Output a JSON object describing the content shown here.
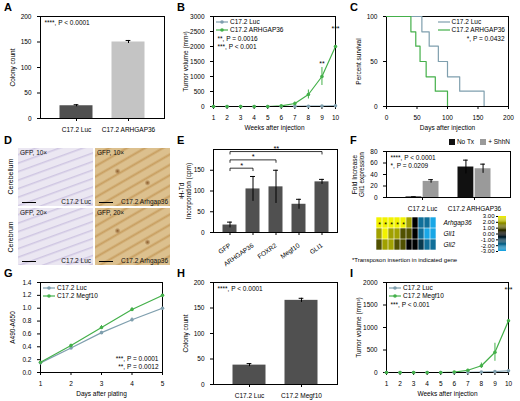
{
  "chart_data": [
    {
      "panel": "A",
      "type": "bar",
      "categories": [
        "C17.2 Luc",
        "C17.2 ARHGAP36"
      ],
      "values": [
        25,
        150
      ],
      "errors": [
        2,
        3
      ],
      "colors": [
        "#505050",
        "#c4c4c4"
      ],
      "y_label": "Colony count",
      "ylim": [
        0,
        200
      ],
      "yticks": [
        0,
        50,
        100,
        150,
        200
      ],
      "annotations": [
        "****, P < 0.0001"
      ]
    },
    {
      "panel": "B",
      "type": "line",
      "x": [
        1,
        2,
        3,
        4,
        5,
        6,
        7,
        8,
        9,
        10
      ],
      "xlim": [
        1,
        10
      ],
      "xticks": [
        1,
        2,
        3,
        4,
        5,
        6,
        7,
        8,
        9,
        10
      ],
      "x_label": "Weeks after injection",
      "y_label": "Tumor volume (mm³)",
      "ylim": [
        0,
        3000
      ],
      "yticks": [
        0,
        500,
        1000,
        1500,
        2000,
        2500,
        3000
      ],
      "marker": "circle",
      "legend": "top-left",
      "series": [
        {
          "name": "C17.2 Luc",
          "color": "#7f9fae",
          "values": [
            0,
            0,
            0,
            0,
            0,
            0,
            5,
            10,
            15,
            25
          ],
          "errors": [
            0,
            0,
            0,
            0,
            0,
            0,
            3,
            5,
            8,
            10
          ]
        },
        {
          "name": "C17.2 ARHGAP36",
          "color": "#44b04a",
          "values": [
            0,
            0,
            0,
            0,
            0,
            20,
            100,
            400,
            1000,
            2000
          ],
          "errors": [
            0,
            0,
            0,
            0,
            0,
            10,
            50,
            150,
            300,
            450
          ]
        }
      ],
      "annotations": [
        "**, P = 0.0016",
        "***, P < 0.001"
      ],
      "significance": [
        {
          "x": 9,
          "label": "**"
        },
        {
          "x": 10,
          "label": "***"
        }
      ]
    },
    {
      "panel": "C",
      "type": "line",
      "line_style": "step",
      "x_label": "Days after injection",
      "y_label": "Percent survival",
      "xlim": [
        0,
        200
      ],
      "xticks": [
        0,
        50,
        100,
        150,
        200
      ],
      "ylim": [
        0,
        100
      ],
      "yticks": [
        0,
        50,
        100
      ],
      "legend": "top-right",
      "series": [
        {
          "name": "C17.2 Luc",
          "color": "#7f9fae",
          "x": [
            0,
            58,
            70,
            85,
            100,
            120,
            160
          ],
          "values": [
            100,
            83,
            67,
            50,
            33,
            17,
            0
          ]
        },
        {
          "name": "C17.2 ARHGAP36",
          "color": "#44b04a",
          "x": [
            0,
            40,
            48,
            55,
            65,
            80,
            100
          ],
          "values": [
            100,
            83,
            67,
            50,
            33,
            17,
            0
          ]
        }
      ],
      "annotations": [
        "*, P = 0.0432"
      ]
    },
    {
      "panel": "D",
      "type": "images",
      "rows": [
        "Cerebellum",
        "Cerebrum"
      ],
      "images": [
        [
          {
            "label": "GFP, 10×",
            "caption": "C17.2 Luc"
          },
          {
            "label": "GFP, 10×",
            "caption": "C17.2 Arhgap36"
          }
        ],
        [
          {
            "label": "GFP, 20×",
            "caption": "C17.2 Luc"
          },
          {
            "label": "GFP, 20×",
            "caption": "C17.2 Arhgap36"
          }
        ]
      ]
    },
    {
      "panel": "E",
      "type": "bar",
      "categories": [
        "GFP",
        "ARHGAP36",
        "FOXR2",
        "Megf10",
        "GLI1"
      ],
      "values": [
        18,
        105,
        110,
        68,
        122
      ],
      "errors": [
        7,
        30,
        40,
        12,
        6
      ],
      "color": "#505050",
      "y_label": "³H-Td Incorporation (cpm)",
      "ylim": [
        0,
        200
      ],
      "yticks": [
        0,
        50,
        100,
        150
      ],
      "comparisons": [
        {
          "from": "GFP",
          "to": "ARHGAP36",
          "label": "*"
        },
        {
          "from": "GFP",
          "to": "FOXR2",
          "label": "*"
        },
        {
          "from": "GFP",
          "to": "GLI1",
          "label": "**"
        }
      ]
    },
    {
      "panel": "F",
      "type": "bar",
      "categories": [
        "C17.2 Luc",
        "C17.2 ARHGAP36"
      ],
      "y_label": "Fold Increase Gli1 expression",
      "ylim": [
        0,
        80
      ],
      "yticks": [
        0,
        20,
        40,
        60,
        80
      ],
      "legend": "top-right",
      "series": [
        {
          "name": "No Tx",
          "color": "#111111",
          "values": [
            1,
            53
          ],
          "errors": [
            0.3,
            12
          ]
        },
        {
          "name": "+ ShhN",
          "color": "#9a9a9a",
          "values": [
            28,
            50
          ],
          "errors": [
            3,
            8
          ]
        }
      ],
      "annotations": [
        "****, P < 0.0001",
        "*, P = 0.0209"
      ],
      "heatmap": {
        "rows": [
          "Arhgap36",
          "Gli1",
          "Gli2"
        ],
        "values": [
          [
            3,
            3,
            3,
            3,
            3,
            2,
            0,
            -2,
            -2,
            -3
          ],
          [
            2,
            3,
            2,
            2,
            1,
            1,
            0,
            -2,
            -3,
            -3
          ],
          [
            1,
            2,
            2,
            1,
            1,
            0,
            0,
            -1,
            -2,
            -2
          ]
        ],
        "range": [
          -3,
          3
        ],
        "ticks": [
          {
            "value": 3,
            "label": "3.00"
          },
          {
            "value": 2,
            "label": "2.00"
          },
          {
            "value": 1,
            "label": "1.00"
          },
          {
            "value": 0,
            "label": "0.00"
          },
          {
            "value": -1,
            "label": "-1.00"
          },
          {
            "value": -2,
            "label": "-2.00"
          },
          {
            "value": -3,
            "label": "-3.00"
          }
        ],
        "colors": [
          "#19a7e6",
          "#000000",
          "#f2f200"
        ],
        "insertions": [
          [
            0,
            0
          ],
          [
            0,
            1
          ],
          [
            0,
            2
          ],
          [
            0,
            3
          ],
          [
            0,
            4
          ]
        ],
        "insertion_label": "*",
        "caption": "*Transposon insertion in indicated gene"
      }
    },
    {
      "panel": "G",
      "type": "line",
      "x": [
        1,
        2,
        3,
        4,
        5
      ],
      "xlim": [
        1,
        5
      ],
      "xticks": [
        1,
        2,
        3,
        4,
        5
      ],
      "x_label": "Days after plating",
      "y_label": "A490-A650",
      "ylim": [
        0,
        1.4
      ],
      "yticks": [
        {
          "value": 0,
          "label": "0.0"
        },
        0.2,
        0.4,
        0.6,
        0.8,
        {
          "value": 1,
          "label": "1.0"
        },
        1.2,
        1.4
      ],
      "marker": "circle",
      "legend": "top-left",
      "series": [
        {
          "name": "C17.2 Luc",
          "color": "#7f9fae",
          "values": [
            0.15,
            0.38,
            0.62,
            0.82,
            1.0
          ],
          "errors": [
            0.01,
            0.02,
            0.02,
            0.03,
            0.03
          ]
        },
        {
          "name": "C17.2 Megf10",
          "color": "#44b04a",
          "values": [
            0.16,
            0.42,
            0.7,
            0.98,
            1.2
          ],
          "errors": [
            0.01,
            0.02,
            0.03,
            0.03,
            0.04
          ]
        }
      ],
      "annotations": [
        "***, P = 0.0001",
        "**, P = 0.0012"
      ]
    },
    {
      "panel": "H",
      "type": "bar",
      "categories": [
        "C17.2 Luc",
        "C17.2 Megf10"
      ],
      "values": [
        38,
        165
      ],
      "errors": [
        3,
        4
      ],
      "color": "#505050",
      "y_label": "Colony count",
      "ylim": [
        0,
        200
      ],
      "yticks": [
        0,
        50,
        100,
        150,
        200
      ],
      "annotations": [
        "****, P < 0.0001"
      ]
    },
    {
      "panel": "I",
      "type": "line",
      "x": [
        1,
        2,
        3,
        4,
        5,
        6,
        7,
        8,
        9,
        10
      ],
      "xlim": [
        1,
        10
      ],
      "xticks": [
        1,
        2,
        3,
        4,
        5,
        6,
        7,
        8,
        9,
        10
      ],
      "x_label": "Weeks after injection",
      "y_label": "Tumor volume (mm³)",
      "ylim": [
        0,
        2000
      ],
      "yticks": [
        0,
        500,
        1000,
        1500,
        2000
      ],
      "marker": "circle",
      "legend": "top-left",
      "series": [
        {
          "name": "C17.2 Luc",
          "color": "#7f9fae",
          "values": [
            0,
            0,
            0,
            0,
            0,
            0,
            5,
            10,
            20,
            40
          ],
          "errors": [
            0,
            0,
            0,
            0,
            0,
            0,
            3,
            5,
            8,
            12
          ]
        },
        {
          "name": "C17.2 Megf10",
          "color": "#44b04a",
          "values": [
            0,
            0,
            0,
            0,
            0,
            10,
            50,
            150,
            450,
            1150
          ],
          "errors": [
            0,
            0,
            0,
            0,
            0,
            5,
            20,
            60,
            200,
            600
          ]
        }
      ],
      "annotations": [
        "***, P < 0.001"
      ],
      "significance": [
        {
          "x": 10,
          "label": "***"
        }
      ]
    }
  ]
}
